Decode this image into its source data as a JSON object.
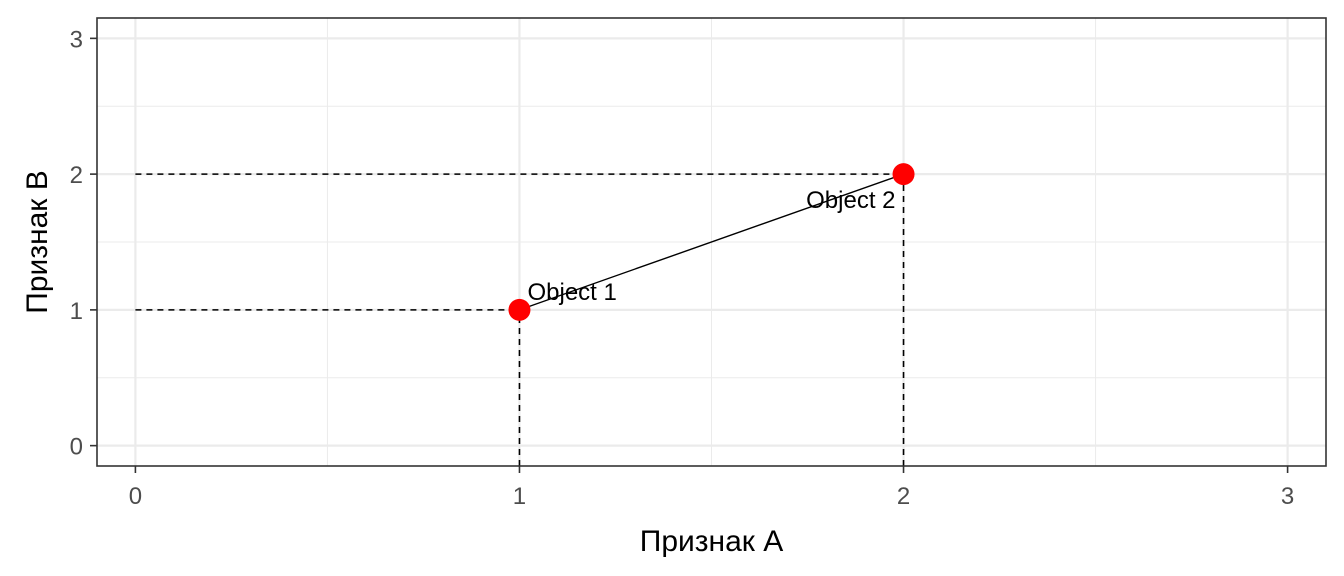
{
  "chart_data": {
    "type": "scatter",
    "title": "",
    "xlabel": "Признак А",
    "ylabel": "Признак B",
    "xlim": [
      -0.1,
      3.1
    ],
    "ylim": [
      -0.15,
      3.15
    ],
    "x_ticks": [
      "0",
      "1",
      "2",
      "3"
    ],
    "y_ticks": [
      "0",
      "1",
      "2",
      "3"
    ],
    "grid": true,
    "points": [
      {
        "x": 1,
        "y": 1,
        "label": "Object 1"
      },
      {
        "x": 2,
        "y": 2,
        "label": "Object 2"
      }
    ],
    "colors": {
      "point": "#ff0000",
      "grid": "#ebebeb",
      "panel_border": "#333333"
    }
  }
}
